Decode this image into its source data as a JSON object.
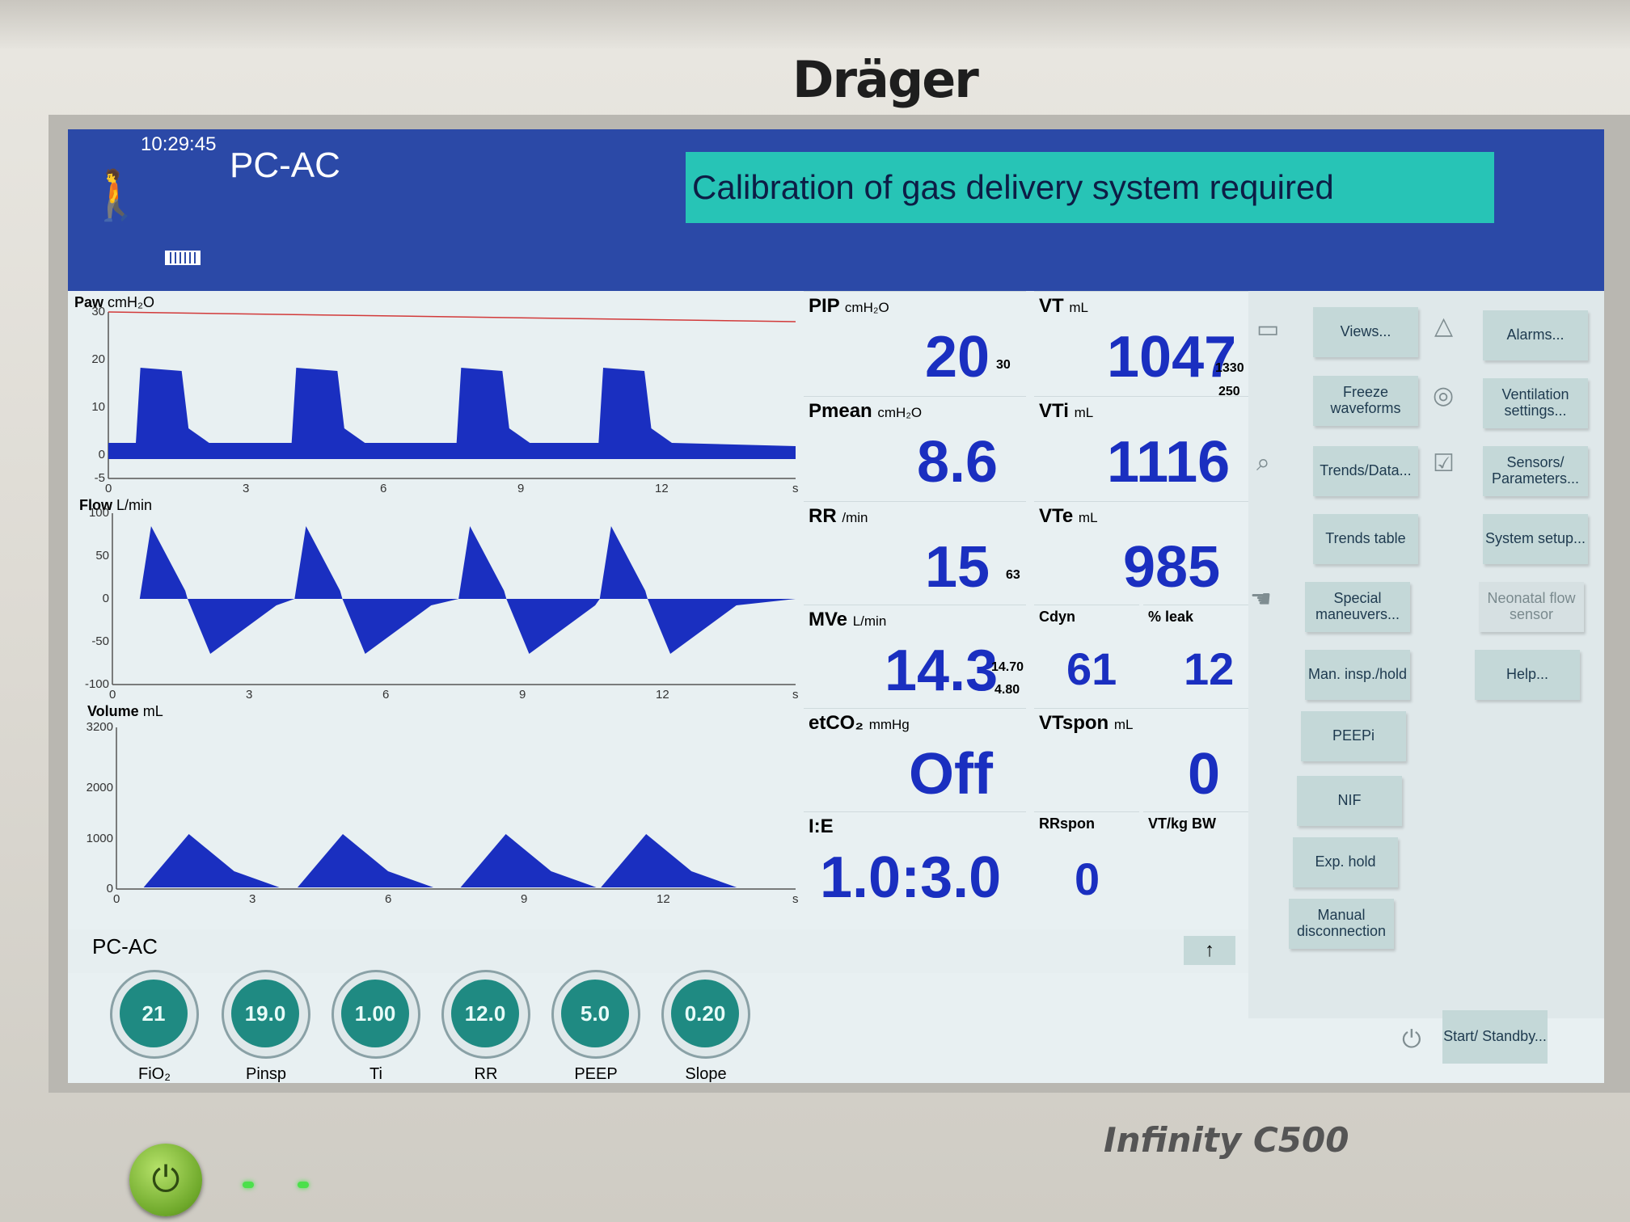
{
  "device": {
    "brand": "Dräger",
    "model": "Infinity C500"
  },
  "header": {
    "time": "10:29:45",
    "mode": "PC-AC",
    "alarm_message": "Calibration of gas delivery system required"
  },
  "colors": {
    "header_bg": "#2b49a7",
    "alarm_bg": "#27c4b6",
    "value_blue": "#1a2fc0",
    "wave_fill": "#1a2fc0",
    "knob": "#1f8a82"
  },
  "waveforms": {
    "paw": {
      "label": "Paw",
      "unit": "cmH₂O",
      "y_ticks": [
        "30",
        "20",
        "10",
        "0",
        "-5"
      ],
      "y_range": [
        -5,
        30
      ]
    },
    "flow": {
      "label": "Flow",
      "unit": "L/min",
      "y_ticks": [
        "100",
        "50",
        "0",
        "-50",
        "-100"
      ],
      "y_range": [
        -100,
        100
      ]
    },
    "volume": {
      "label": "Volume",
      "unit": "mL",
      "y_ticks": [
        "3200",
        "2000",
        "1000",
        "0"
      ],
      "y_range": [
        0,
        3200
      ]
    },
    "x_ticks": [
      "0",
      "3",
      "6",
      "9",
      "12",
      "s"
    ],
    "x_range_s": [
      0,
      15
    ]
  },
  "measurements": {
    "pip": {
      "label": "PIP",
      "unit": "cmH₂O",
      "value": "20",
      "limit": "30"
    },
    "vt": {
      "label": "VT",
      "unit": "mL",
      "value": "1047",
      "limit_high": "1330",
      "limit_low": "250"
    },
    "pmean": {
      "label": "Pmean",
      "unit": "cmH₂O",
      "value": "8.6"
    },
    "vti": {
      "label": "VTi",
      "unit": "mL",
      "value": "1116"
    },
    "rr": {
      "label": "RR",
      "unit": "/min",
      "value": "15",
      "limit": "63"
    },
    "vte": {
      "label": "VTe",
      "unit": "mL",
      "value": "985"
    },
    "mve": {
      "label": "MVe",
      "unit": "L/min",
      "value": "14.3",
      "limit_high": "14.70",
      "limit_low": "4.80"
    },
    "cdyn": {
      "label": "Cdyn",
      "value": "61"
    },
    "leak": {
      "label": "% leak",
      "value": "12"
    },
    "etco2": {
      "label": "etCO₂",
      "unit": "mmHg",
      "value": "Off"
    },
    "vtspon": {
      "label": "VTspon",
      "unit": "mL",
      "value": "0"
    },
    "ie": {
      "label": "I:E",
      "value": "1.0:3.0"
    },
    "rrspon": {
      "label": "RRspon",
      "value": "0"
    },
    "vtkgbw": {
      "label": "VT/kg BW",
      "value": ""
    }
  },
  "menu": {
    "views": "Views...",
    "alarms": "Alarms...",
    "freeze": "Freeze waveforms",
    "ventilation_settings": "Ventilation settings...",
    "trends_data": "Trends/Data...",
    "sensors": "Sensors/ Parameters...",
    "trends_table": "Trends table",
    "system_setup": "System setup...",
    "special": "Special maneuvers...",
    "neonatal": "Neonatal flow sensor",
    "man_insp": "Man. insp./hold",
    "help": "Help...",
    "peepi": "PEEPi",
    "nif": "NIF",
    "exp_hold": "Exp. hold",
    "manual_disc": "Manual disconnection",
    "standby": "Start/ Standby..."
  },
  "mode_bar": {
    "label": "PC-AC",
    "arrow": "↑"
  },
  "settings": [
    {
      "name": "FiO₂",
      "value": "21"
    },
    {
      "name": "Pinsp",
      "value": "19.0"
    },
    {
      "name": "Ti",
      "value": "1.00"
    },
    {
      "name": "RR",
      "value": "12.0"
    },
    {
      "name": "PEEP",
      "value": "5.0"
    },
    {
      "name": "Slope",
      "value": "0.20"
    }
  ]
}
